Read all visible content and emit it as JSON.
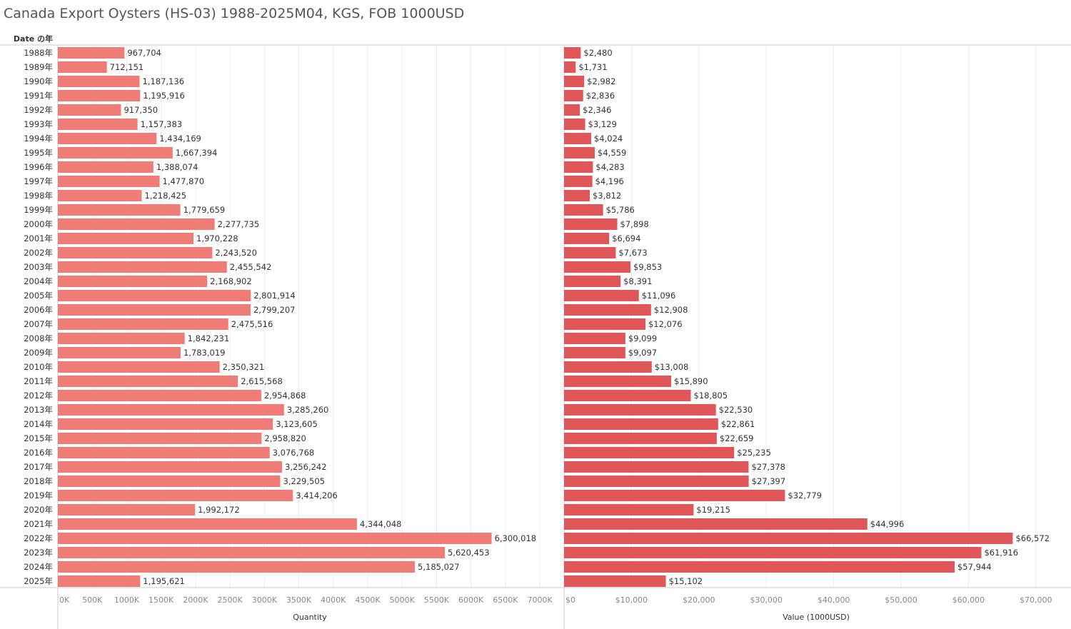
{
  "title": "Canada Export Oysters (HS-03) 1988-2025M04, KGS, FOB 1000USD",
  "row_header": "Date の年",
  "colors": {
    "quantity_bar": "#f07c78",
    "value_bar": "#e05759",
    "grid": "#ebebeb",
    "axis": "#cccccc",
    "text": "#333333",
    "tick": "#888888"
  },
  "chart_data": [
    {
      "type": "bar",
      "orientation": "horizontal",
      "xlabel": "Quantity",
      "xlim": [
        0,
        7300000
      ],
      "ticks": [
        0,
        500000,
        1000000,
        1500000,
        2000000,
        2500000,
        3000000,
        3500000,
        4000000,
        4500000,
        5000000,
        5500000,
        6000000,
        6500000,
        7000000
      ],
      "tick_labels": [
        "0K",
        "500K",
        "1000K",
        "1500K",
        "2000K",
        "2500K",
        "3000K",
        "3500K",
        "4000K",
        "4500K",
        "5000K",
        "5500K",
        "6000K",
        "6500K",
        "7000K"
      ],
      "categories": [
        "1988年",
        "1989年",
        "1990年",
        "1991年",
        "1992年",
        "1993年",
        "1994年",
        "1995年",
        "1996年",
        "1997年",
        "1998年",
        "1999年",
        "2000年",
        "2001年",
        "2002年",
        "2003年",
        "2004年",
        "2005年",
        "2006年",
        "2007年",
        "2008年",
        "2009年",
        "2010年",
        "2011年",
        "2012年",
        "2013年",
        "2014年",
        "2015年",
        "2016年",
        "2017年",
        "2018年",
        "2019年",
        "2020年",
        "2021年",
        "2022年",
        "2023年",
        "2024年",
        "2025年"
      ],
      "values": [
        967704,
        712151,
        1187136,
        1195916,
        917350,
        1157383,
        1434169,
        1667394,
        1388074,
        1477870,
        1218425,
        1779659,
        2277735,
        1970228,
        2243520,
        2455542,
        2168902,
        2801914,
        2799207,
        2475516,
        1842231,
        1783019,
        2350321,
        2615568,
        2954868,
        3285260,
        3123605,
        2958820,
        3076768,
        3256242,
        3229505,
        3414206,
        1992172,
        4344048,
        6300018,
        5620453,
        5185027,
        1195621
      ],
      "labels": [
        "967,704",
        "712,151",
        "1,187,136",
        "1,195,916",
        "917,350",
        "1,157,383",
        "1,434,169",
        "1,667,394",
        "1,388,074",
        "1,477,870",
        "1,218,425",
        "1,779,659",
        "2,277,735",
        "1,970,228",
        "2,243,520",
        "2,455,542",
        "2,168,902",
        "2,801,914",
        "2,799,207",
        "2,475,516",
        "1,842,231",
        "1,783,019",
        "2,350,321",
        "2,615,568",
        "2,954,868",
        "3,285,260",
        "3,123,605",
        "2,958,820",
        "3,076,768",
        "3,256,242",
        "3,229,505",
        "3,414,206",
        "1,992,172",
        "4,344,048",
        "6,300,018",
        "5,620,453",
        "5,185,027",
        "1,195,621"
      ]
    },
    {
      "type": "bar",
      "orientation": "horizontal",
      "xlabel": "Value (1000USD)",
      "xlim": [
        0,
        75000
      ],
      "ticks": [
        0,
        10000,
        20000,
        30000,
        40000,
        50000,
        60000,
        70000
      ],
      "tick_labels": [
        "$0",
        "$10,000",
        "$20,000",
        "$30,000",
        "$40,000",
        "$50,000",
        "$60,000",
        "$70,000"
      ],
      "categories": [
        "1988年",
        "1989年",
        "1990年",
        "1991年",
        "1992年",
        "1993年",
        "1994年",
        "1995年",
        "1996年",
        "1997年",
        "1998年",
        "1999年",
        "2000年",
        "2001年",
        "2002年",
        "2003年",
        "2004年",
        "2005年",
        "2006年",
        "2007年",
        "2008年",
        "2009年",
        "2010年",
        "2011年",
        "2012年",
        "2013年",
        "2014年",
        "2015年",
        "2016年",
        "2017年",
        "2018年",
        "2019年",
        "2020年",
        "2021年",
        "2022年",
        "2023年",
        "2024年",
        "2025年"
      ],
      "values": [
        2480,
        1731,
        2982,
        2836,
        2346,
        3129,
        4024,
        4559,
        4283,
        4196,
        3812,
        5786,
        7898,
        6694,
        7673,
        9853,
        8391,
        11096,
        12908,
        12076,
        9099,
        9097,
        13008,
        15890,
        18805,
        22530,
        22861,
        22659,
        25235,
        27378,
        27397,
        32779,
        19215,
        44996,
        66572,
        61916,
        57944,
        15102
      ],
      "labels": [
        "$2,480",
        "$1,731",
        "$2,982",
        "$2,836",
        "$2,346",
        "$3,129",
        "$4,024",
        "$4,559",
        "$4,283",
        "$4,196",
        "$3,812",
        "$5,786",
        "$7,898",
        "$6,694",
        "$7,673",
        "$9,853",
        "$8,391",
        "$11,096",
        "$12,908",
        "$12,076",
        "$9,099",
        "$9,097",
        "$13,008",
        "$15,890",
        "$18,805",
        "$22,530",
        "$22,861",
        "$22,659",
        "$25,235",
        "$27,378",
        "$27,397",
        "$32,779",
        "$19,215",
        "$44,996",
        "$66,572",
        "$61,916",
        "$57,944",
        "$15,102"
      ]
    }
  ]
}
